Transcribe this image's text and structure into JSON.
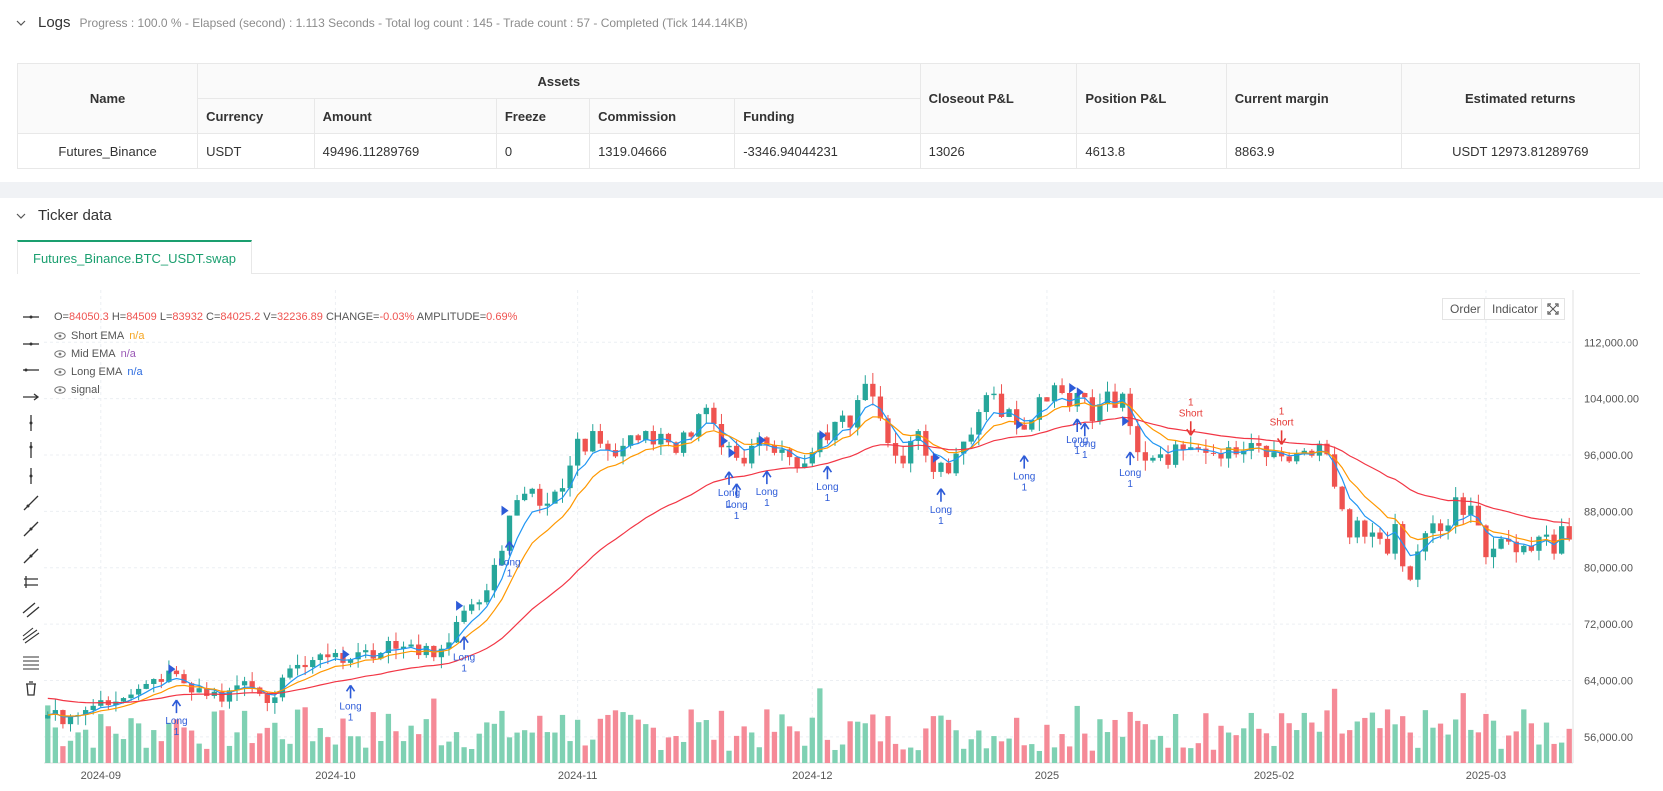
{
  "logs": {
    "title": "Logs",
    "status": "Progress : 100.0 % - Elapsed (second) : 1.113  Seconds - Total log count : 145 - Trade count : 57 - Completed (Tick 144.14KB)"
  },
  "assets_table": {
    "group_headers": {
      "name": "Name",
      "assets": "Assets",
      "closeout": "Closeout P&L",
      "position": "Position P&L",
      "margin": "Current margin",
      "returns": "Estimated returns"
    },
    "sub_headers": {
      "currency": "Currency",
      "amount": "Amount",
      "freeze": "Freeze",
      "commission": "Commission",
      "funding": "Funding"
    },
    "row": {
      "name": "Futures_Binance",
      "currency": "USDT",
      "amount": "49496.11289769",
      "freeze": "0",
      "commission": "1319.04666",
      "funding": "-3346.94044231",
      "closeout": "13026",
      "position": "4613.8",
      "margin": "8863.9",
      "returns": "USDT 12973.81289769"
    }
  },
  "ticker": {
    "title": "Ticker data",
    "tab_label": "Futures_Binance.BTC_USDT.swap",
    "buttons": {
      "order": "Order",
      "indicator": "Indicator"
    }
  },
  "ohlc": {
    "o_label": "O=",
    "o": "84050.3",
    "h_label": "H=",
    "h": "84509",
    "l_label": "L=",
    "l": "83932",
    "c_label": "C=",
    "c": "84025.2",
    "v_label": "V=",
    "v": "32236.89",
    "change_label": "CHANGE=",
    "change": "-0.03%",
    "amp_label": "AMPLITUDE=",
    "amp": "0.69%"
  },
  "legend": [
    {
      "name": "Short EMA",
      "value": "n/a",
      "color": "#f5a623"
    },
    {
      "name": "Mid EMA",
      "value": "n/a",
      "color": "#9b59b6"
    },
    {
      "name": "Long EMA",
      "value": "n/a",
      "color": "#2d6cdf"
    },
    {
      "name": "signal",
      "value": "",
      "color": "#555555"
    }
  ],
  "colors": {
    "up": "#26a69a",
    "down": "#ef5350",
    "short_ema": "#2196f3",
    "mid_ema": "#ff9800",
    "long_ema": "#f23645",
    "signal_long": "#2d5bd8",
    "signal_short": "#e53935"
  },
  "chart_data": {
    "type": "candlestick",
    "y_ticks": [
      "112,000.00",
      "104,000.00",
      "96,000.00",
      "88,000.00",
      "80,000.00",
      "72,000.00",
      "64,000.00",
      "56,000.00"
    ],
    "y_range": [
      52000,
      118000
    ],
    "x_ticks": [
      "2024-09",
      "2024-10",
      "2024-11",
      "2024-12",
      "2025",
      "2025-02",
      "2025-03"
    ],
    "x_tick_positions": [
      7,
      38,
      70,
      101,
      132,
      162,
      190
    ],
    "close": [
      59100,
      59800,
      57800,
      58900,
      59100,
      59800,
      60400,
      61200,
      60500,
      61000,
      61500,
      62000,
      62800,
      63500,
      64200,
      63800,
      65400,
      64900,
      63600,
      62300,
      62900,
      61800,
      62400,
      61000,
      62600,
      63300,
      63900,
      63000,
      62100,
      60800,
      61600,
      64400,
      65700,
      66200,
      65900,
      66900,
      67700,
      67300,
      67900,
      66500,
      67000,
      68000,
      68300,
      67100,
      67900,
      69600,
      68500,
      68800,
      69100,
      67600,
      68900,
      67300,
      68500,
      69400,
      72300,
      73900,
      74800,
      75100,
      76800,
      80400,
      82400,
      87400,
      89600,
      90500,
      91200,
      88800,
      89100,
      90800,
      91300,
      94500,
      98300,
      96500,
      99400,
      97600,
      96700,
      95800,
      97300,
      98800,
      98100,
      99400,
      97500,
      99000,
      97800,
      96300,
      99200,
      98600,
      101800,
      102700,
      100400,
      97100,
      97300,
      95600,
      94800,
      97300,
      98500,
      97400,
      96300,
      96800,
      95700,
      94200,
      94800,
      96400,
      99200,
      98100,
      100700,
      101600,
      99900,
      103800,
      106100,
      104300,
      101200,
      97700,
      95900,
      94800,
      98000,
      99400,
      95900,
      93600,
      94900,
      93400,
      96200,
      97900,
      98900,
      102100,
      104500,
      104700,
      101400,
      102500,
      100300,
      99600,
      101000,
      104200,
      103600,
      105900,
      104800,
      102900,
      104800,
      104200,
      100800,
      103200,
      105000,
      102700,
      104700,
      100100,
      96400,
      95200,
      95600,
      96100,
      94600,
      97500,
      96700,
      97100,
      96900,
      96300,
      96200,
      95500,
      97100,
      96100,
      96600,
      97700,
      97300,
      95700,
      96400,
      95800,
      95100,
      96200,
      96600,
      95900,
      97600,
      96100,
      91500,
      88300,
      84300,
      86700,
      84400,
      85000,
      84100,
      82000,
      86200,
      80200,
      78300,
      82300,
      84900,
      86300,
      85200,
      86000,
      90000,
      87500,
      88800,
      86000,
      81500,
      82700,
      84100,
      83700,
      82200,
      83100,
      82400,
      84400,
      84700,
      82000,
      85900,
      84000
    ],
    "signals": [
      {
        "type": "long",
        "label_1": "Long",
        "label_2": "1",
        "index": 17
      },
      {
        "type": "long",
        "label_1": "Long",
        "label_2": "1",
        "index": 40
      },
      {
        "type": "long",
        "label_1": "Long",
        "label_2": "1",
        "index": 55
      },
      {
        "type": "long",
        "label_1": "Long",
        "label_2": "1",
        "index": 61
      },
      {
        "type": "long",
        "label_1": "Long",
        "label_2": "1",
        "index": 90
      },
      {
        "type": "long",
        "label_1": "Long",
        "label_2": "1",
        "index": 91
      },
      {
        "type": "long",
        "label_1": "Long",
        "label_2": "1",
        "index": 95
      },
      {
        "type": "long",
        "label_1": "Long",
        "label_2": "1",
        "index": 103
      },
      {
        "type": "long",
        "label_1": "Long",
        "label_2": "1",
        "index": 118
      },
      {
        "type": "long",
        "label_1": "Long",
        "label_2": "1",
        "index": 129
      },
      {
        "type": "long",
        "label_1": "Long",
        "label_2": "1",
        "index": 136
      },
      {
        "type": "long",
        "label_1": "Long",
        "label_2": "1",
        "index": 137
      },
      {
        "type": "long",
        "label_1": "Long",
        "label_2": "1",
        "index": 143
      },
      {
        "type": "short",
        "label_1": "1",
        "label_2": "Short",
        "index": 151
      },
      {
        "type": "short",
        "label_1": "1",
        "label_2": "Short",
        "index": 163
      }
    ]
  }
}
